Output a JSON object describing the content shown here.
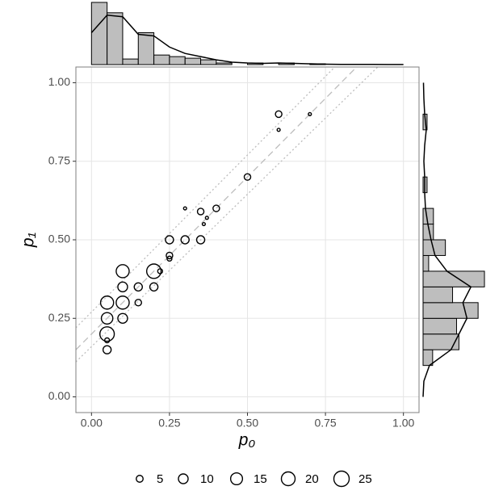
{
  "chart_data": {
    "type": "scatter",
    "xlabel": "p₀",
    "ylabel": "p₁",
    "xlim": [
      -0.05,
      1.05
    ],
    "ylim": [
      -0.05,
      1.05
    ],
    "xticks": [
      {
        "value": 0,
        "label": "0.00"
      },
      {
        "value": 0.25,
        "label": "0.25"
      },
      {
        "value": 0.5,
        "label": "0.50"
      },
      {
        "value": 0.75,
        "label": "0.75"
      },
      {
        "value": 1,
        "label": "1.00"
      }
    ],
    "yticks": [
      {
        "value": 0,
        "label": "0.00"
      },
      {
        "value": 0.25,
        "label": "0.25"
      },
      {
        "value": 0.5,
        "label": "0.50"
      },
      {
        "value": 0.75,
        "label": "0.75"
      },
      {
        "value": 1,
        "label": "1.00"
      }
    ],
    "grid": true,
    "series": [
      {
        "color": "#000000",
        "x": [
          0.05,
          0.05,
          0.05,
          0.05,
          0.05,
          0.1,
          0.1,
          0.1,
          0.1,
          0.15,
          0.15,
          0.2,
          0.2,
          0.22,
          0.25,
          0.25,
          0.25,
          0.3,
          0.3,
          0.35,
          0.35,
          0.36,
          0.37,
          0.4,
          0.5,
          0.6,
          0.6,
          0.7
        ],
        "y": [
          0.15,
          0.18,
          0.2,
          0.25,
          0.3,
          0.25,
          0.3,
          0.35,
          0.4,
          0.3,
          0.35,
          0.35,
          0.4,
          0.4,
          0.44,
          0.45,
          0.5,
          0.5,
          0.6,
          0.5,
          0.59,
          0.55,
          0.57,
          0.6,
          0.7,
          0.85,
          0.9,
          0.9
        ],
        "size": [
          7,
          2.5,
          22,
          14,
          18,
          10,
          18,
          10,
          18,
          4.5,
          7,
          7,
          22,
          2.5,
          2.5,
          4.5,
          7,
          7,
          1,
          7,
          4.5,
          1,
          1,
          4.5,
          4.5,
          1,
          4.5,
          1
        ]
      }
    ],
    "reference_lines": [
      {
        "intercept": 0.2,
        "slope": 1.0,
        "style": "dashed"
      },
      {
        "intercept": 0.27,
        "slope": 1.0,
        "style": "dotted"
      },
      {
        "intercept": 0.16,
        "slope": 0.97,
        "style": "dotted"
      }
    ],
    "legend_sizes": [
      5,
      10,
      15,
      20,
      25
    ],
    "marginal_lim": [
      0,
      80
    ],
    "top_histogram": {
      "color": "#bebebe",
      "bins": [
        0,
        0.05,
        0.1,
        0.15,
        0.2,
        0.25,
        0.3,
        0.35,
        0.4,
        0.45,
        0.5,
        0.55,
        0.6,
        0.65,
        0.7,
        0.75,
        0.8,
        0.85,
        0.9,
        0.95,
        1
      ],
      "values": [
        78,
        65,
        7,
        40,
        12,
        10,
        8,
        6,
        2,
        0,
        2,
        0,
        2,
        0,
        1,
        0,
        0,
        0,
        0,
        0
      ],
      "density_x": [
        0,
        0.05,
        0.1,
        0.15,
        0.2,
        0.25,
        0.3,
        0.35,
        0.4,
        0.45,
        0.5,
        0.55,
        0.6,
        0.65,
        0.7,
        0.75,
        0.8,
        0.85,
        0.9,
        0.95,
        1
      ],
      "density": [
        40,
        62,
        60,
        38,
        36,
        22,
        14,
        10,
        6,
        3,
        2,
        1.5,
        2,
        1.5,
        1,
        0.5,
        0.3,
        0.2,
        0.2,
        0.1,
        0.1
      ]
    },
    "right_histogram": {
      "color": "#bebebe",
      "bins": [
        0,
        0.05,
        0.1,
        0.15,
        0.2,
        0.25,
        0.3,
        0.35,
        0.4,
        0.45,
        0.5,
        0.55,
        0.6,
        0.65,
        0.7,
        0.75,
        0.8,
        0.85,
        0.9,
        0.95,
        1
      ],
      "values": [
        0,
        0,
        12,
        45,
        42,
        69,
        37,
        77,
        7,
        28,
        13,
        13,
        0,
        5,
        0,
        0,
        0,
        5,
        0,
        0
      ],
      "density_x": [
        0,
        0.05,
        0.1,
        0.15,
        0.2,
        0.25,
        0.3,
        0.35,
        0.4,
        0.45,
        0.5,
        0.55,
        0.6,
        0.65,
        0.7,
        0.75,
        0.8,
        0.85,
        0.9,
        0.95,
        1
      ],
      "density": [
        0,
        1,
        8,
        35,
        45,
        55,
        50,
        60,
        30,
        15,
        10,
        6,
        3,
        2,
        2,
        1,
        2,
        4,
        2,
        1,
        0.5
      ]
    }
  }
}
